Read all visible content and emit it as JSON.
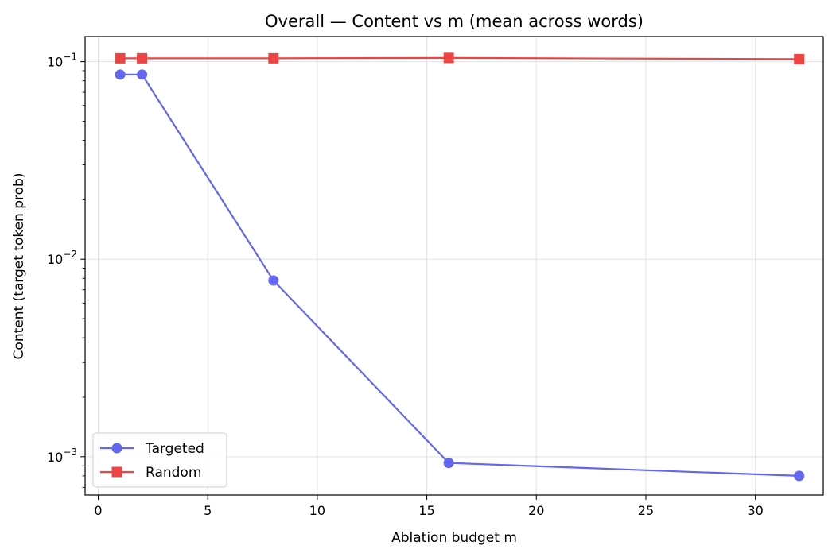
{
  "chart_data": {
    "type": "line",
    "title": "Overall — Content vs m (mean across words)",
    "xlabel": "Ablation budget m",
    "ylabel": "Content (target token prob)",
    "xlim": [
      -0.6,
      33.1
    ],
    "ylim": [
      0.00064,
      0.134
    ],
    "yscale": "log",
    "grid": true,
    "legend_position": "lower-left",
    "x_ticks": [
      0,
      5,
      10,
      15,
      20,
      25,
      30
    ],
    "y_ticks": [
      {
        "value": 0.001,
        "base": "10",
        "exp": "−3"
      },
      {
        "value": 0.01,
        "base": "10",
        "exp": "−2"
      },
      {
        "value": 0.1,
        "base": "10",
        "exp": "−1"
      }
    ],
    "series": [
      {
        "name": "Targeted",
        "color": "#6366f1",
        "marker": "circle",
        "x": [
          1,
          2,
          8,
          16,
          32
        ],
        "y": [
          0.086,
          0.086,
          0.0078,
          0.00093,
          0.0008
        ]
      },
      {
        "name": "Random",
        "color": "#ef4444",
        "marker": "square",
        "x": [
          1,
          2,
          8,
          16,
          32
        ],
        "y": [
          0.104,
          0.104,
          0.104,
          0.1045,
          0.103
        ]
      }
    ]
  }
}
